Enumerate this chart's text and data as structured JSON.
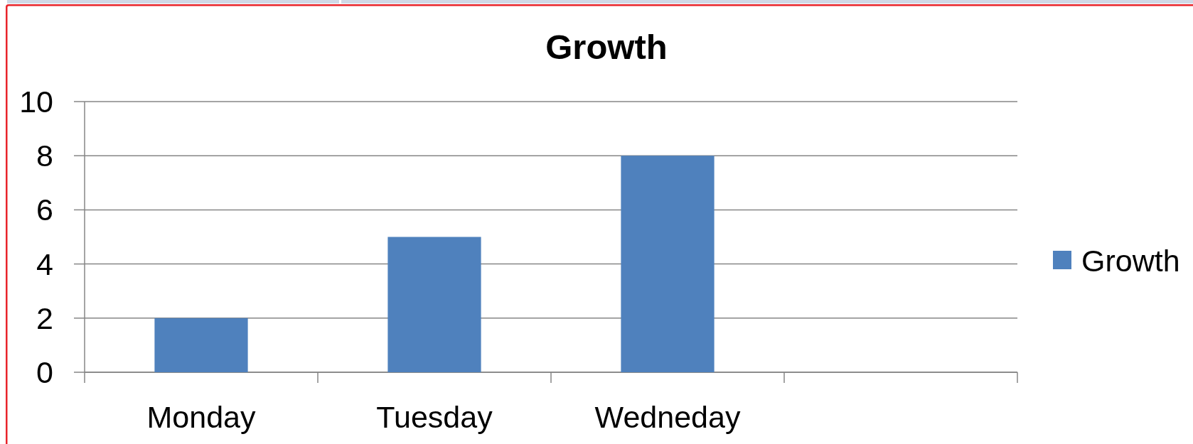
{
  "chart_data": {
    "type": "bar",
    "title": "Growth",
    "categories": [
      "Monday",
      "Tuesday",
      "Wedneday",
      null
    ],
    "series": [
      {
        "name": "Growth",
        "color": "#4f81bd",
        "values": [
          2,
          5,
          8,
          null
        ]
      }
    ],
    "ylim": [
      0,
      10
    ],
    "yticks": [
      0,
      2,
      4,
      6,
      8,
      10
    ],
    "grid": "y",
    "legend": "right"
  }
}
